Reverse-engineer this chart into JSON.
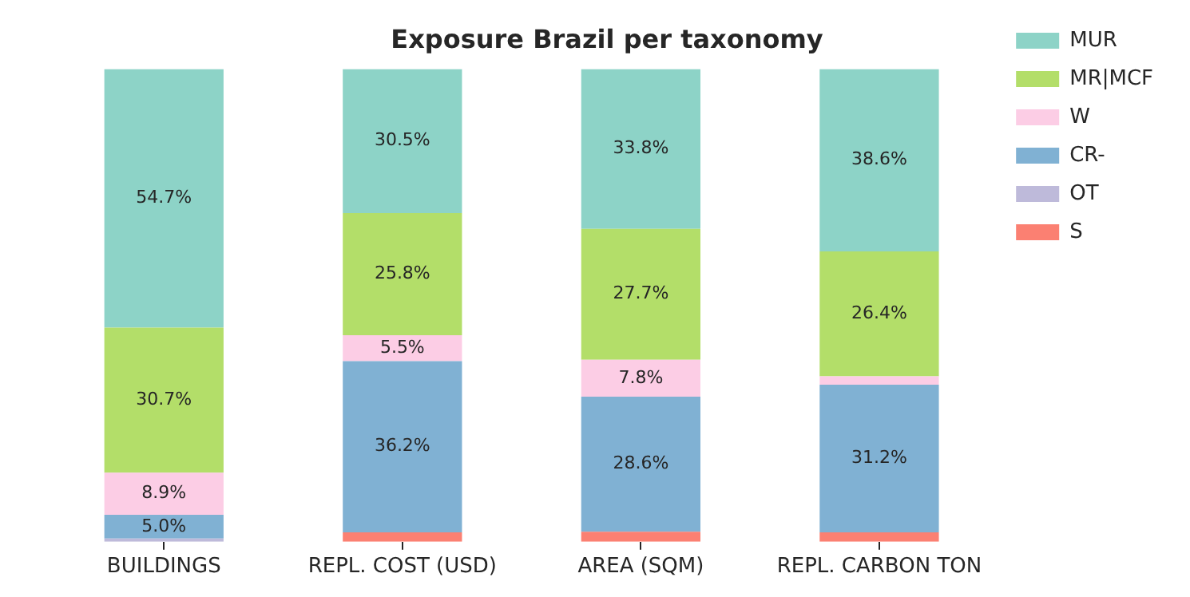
{
  "chart_data": {
    "type": "bar",
    "title": "Exposure Brazil per taxonomy",
    "stacked": true,
    "tick_labels": "x",
    "ylim": [
      0,
      100
    ],
    "legend": "right",
    "grid": false,
    "categories": [
      "BUILDINGS",
      "REPL. COST (USD)",
      "AREA (SQM)",
      "REPL. CARBON TON"
    ],
    "series": [
      {
        "name": "S",
        "color": "#fb8072",
        "values": [
          0,
          2.0,
          2.1,
          2.0
        ],
        "value_labels": [
          null,
          null,
          null,
          null
        ]
      },
      {
        "name": "OT",
        "color": "#bebada",
        "values": [
          0.7,
          null,
          null,
          null
        ],
        "value_labels": [
          null,
          null,
          null,
          null
        ]
      },
      {
        "name": "CR-",
        "color": "#80b1d3",
        "values": [
          5.0,
          36.2,
          28.6,
          31.2
        ],
        "value_labels": [
          "5.0%",
          "36.2%",
          "28.6%",
          "31.2%"
        ]
      },
      {
        "name": "W",
        "color": "#fccde5",
        "values": [
          8.9,
          5.5,
          7.8,
          1.8
        ],
        "value_labels": [
          "8.9%",
          "5.5%",
          "7.8%",
          null
        ]
      },
      {
        "name": "MR|MCF",
        "color": "#b3de69",
        "values": [
          30.7,
          25.8,
          27.7,
          26.4
        ],
        "value_labels": [
          "30.7%",
          "25.8%",
          "27.7%",
          "26.4%"
        ]
      },
      {
        "name": "MUR",
        "color": "#8dd3c7",
        "values": [
          54.7,
          30.5,
          33.8,
          38.6
        ],
        "value_labels": [
          "54.7%",
          "30.5%",
          "33.8%",
          "38.6%"
        ]
      }
    ]
  }
}
